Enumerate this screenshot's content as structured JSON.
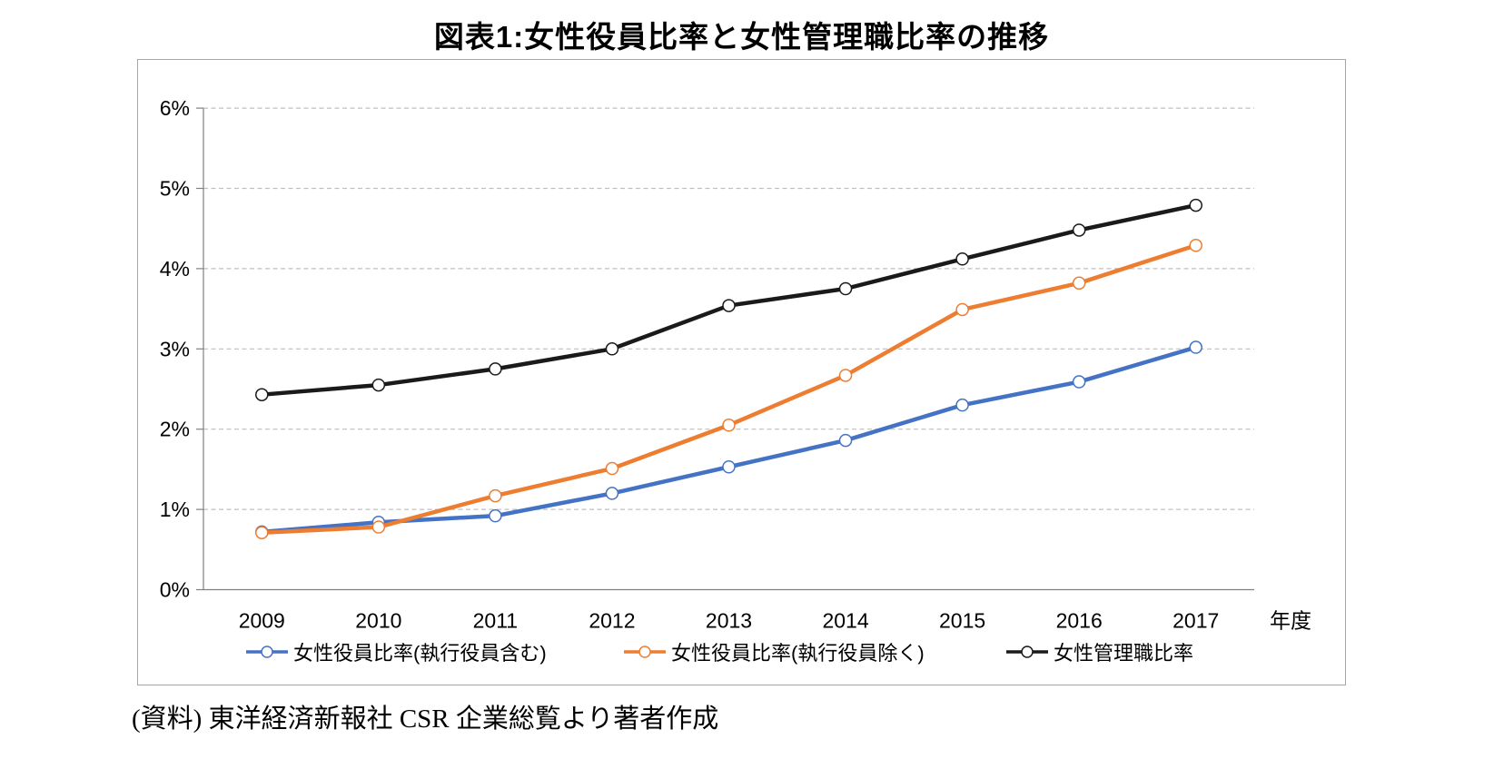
{
  "title": "図表1:女性役員比率と女性管理職比率の推移",
  "source_note": "(資料) 東洋経済新報社 CSR 企業総覧より著者作成",
  "colors": {
    "series_blue": "#4472C4",
    "series_orange": "#ED7D31",
    "series_black": "#1a1a1a",
    "gridline": "#bfbfbf",
    "axis": "#808080",
    "frame_border": "#a6a6a6",
    "marker_fill": "#ffffff"
  },
  "chart_data": {
    "type": "line",
    "title": "図表1:女性役員比率と女性管理職比率の推移",
    "categories": [
      "2009",
      "2010",
      "2011",
      "2012",
      "2013",
      "2014",
      "2015",
      "2016",
      "2017"
    ],
    "x_axis_unit_label": "年度",
    "xlabel": "年度",
    "ylabel": "",
    "ylim": [
      0,
      6
    ],
    "y_tick_step": 1,
    "y_tick_labels": [
      "0%",
      "1%",
      "2%",
      "3%",
      "4%",
      "5%",
      "6%"
    ],
    "grid": "horizontal-dashed",
    "legend_position": "bottom",
    "marker": "circle-white-fill",
    "series": [
      {
        "name": "女性役員比率(執行役員含む)",
        "color": "#4472C4",
        "values": [
          0.72,
          0.84,
          0.92,
          1.2,
          1.53,
          1.86,
          2.3,
          2.59,
          3.02
        ]
      },
      {
        "name": "女性役員比率(執行役員除く)",
        "color": "#ED7D31",
        "values": [
          0.71,
          0.78,
          1.17,
          1.51,
          2.05,
          2.67,
          3.49,
          3.82,
          4.29
        ]
      },
      {
        "name": "女性管理職比率",
        "color": "#1a1a1a",
        "values": [
          2.43,
          2.55,
          2.75,
          3.0,
          3.54,
          3.75,
          4.12,
          4.48,
          4.79
        ]
      }
    ]
  }
}
